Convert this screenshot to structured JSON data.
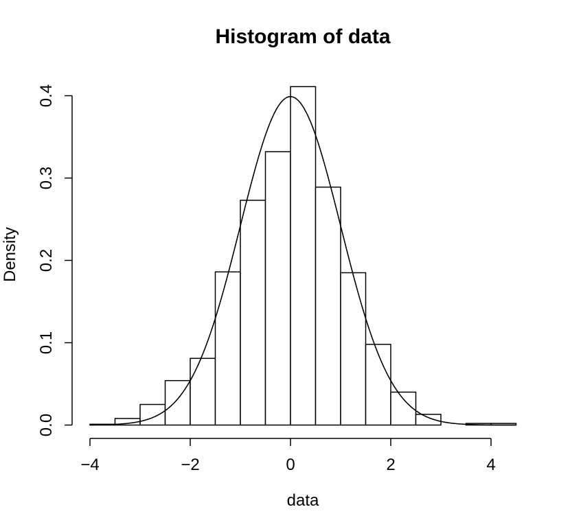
{
  "chart_data": {
    "type": "bar",
    "title": "Histogram of data",
    "xlabel": "data",
    "ylabel": "Density",
    "xlim": [
      -4,
      4.5
    ],
    "ylim": [
      0,
      0.4
    ],
    "x_ticks": [
      -4,
      -2,
      0,
      2,
      4
    ],
    "x_tick_labels": [
      "−4",
      "−2",
      "0",
      "2",
      "4"
    ],
    "y_ticks": [
      0.0,
      0.1,
      0.2,
      0.3,
      0.4
    ],
    "y_tick_labels": [
      "0.0",
      "0.1",
      "0.2",
      "0.3",
      "0.4"
    ],
    "bins": [
      {
        "start": -4.0,
        "end": -3.5,
        "density": 0.001
      },
      {
        "start": -3.5,
        "end": -3.0,
        "density": 0.008
      },
      {
        "start": -3.0,
        "end": -2.5,
        "density": 0.025
      },
      {
        "start": -2.5,
        "end": -2.0,
        "density": 0.054
      },
      {
        "start": -2.0,
        "end": -1.5,
        "density": 0.081
      },
      {
        "start": -1.5,
        "end": -1.0,
        "density": 0.186
      },
      {
        "start": -1.0,
        "end": -0.5,
        "density": 0.273
      },
      {
        "start": -0.5,
        "end": 0.0,
        "density": 0.332
      },
      {
        "start": 0.0,
        "end": 0.5,
        "density": 0.411
      },
      {
        "start": 0.5,
        "end": 1.0,
        "density": 0.289
      },
      {
        "start": 1.0,
        "end": 1.5,
        "density": 0.185
      },
      {
        "start": 1.5,
        "end": 2.0,
        "density": 0.098
      },
      {
        "start": 2.0,
        "end": 2.5,
        "density": 0.04
      },
      {
        "start": 2.5,
        "end": 3.0,
        "density": 0.013
      },
      {
        "start": 3.0,
        "end": 3.5,
        "density": 0.0
      },
      {
        "start": 3.5,
        "end": 4.0,
        "density": 0.002
      },
      {
        "start": 4.0,
        "end": 4.5,
        "density": 0.002
      }
    ],
    "density_curve": {
      "distribution": "normal",
      "mean": 0,
      "sd": 1
    },
    "grid": false,
    "colors": {
      "bar_fill": "#ffffff",
      "bar_stroke": "#000000",
      "curve": "#000000"
    }
  }
}
